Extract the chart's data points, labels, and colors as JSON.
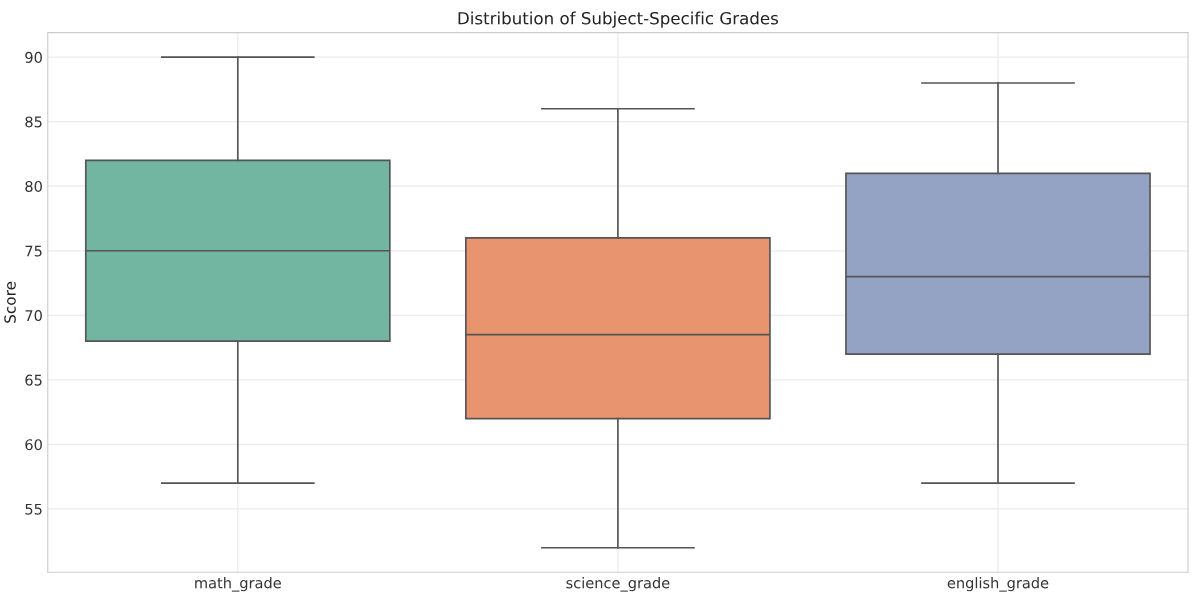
{
  "chart_data": {
    "type": "box",
    "title": "Distribution of Subject-Specific Grades",
    "ylabel": "Score",
    "categories": [
      "math_grade",
      "science_grade",
      "english_grade"
    ],
    "boxes": [
      {
        "low": 57,
        "q1": 68,
        "median": 75,
        "q3": 82,
        "high": 90
      },
      {
        "low": 52,
        "q1": 62,
        "median": 68.5,
        "q3": 76,
        "high": 86
      },
      {
        "low": 57,
        "q1": 67,
        "median": 73,
        "q3": 81,
        "high": 88
      }
    ],
    "colors": [
      "#72b6a1",
      "#e8956f",
      "#94a3c4"
    ],
    "ylim": [
      50.1,
      91.9
    ],
    "yticks": [
      55,
      60,
      65,
      70,
      75,
      80,
      85,
      90
    ],
    "grid": true
  }
}
